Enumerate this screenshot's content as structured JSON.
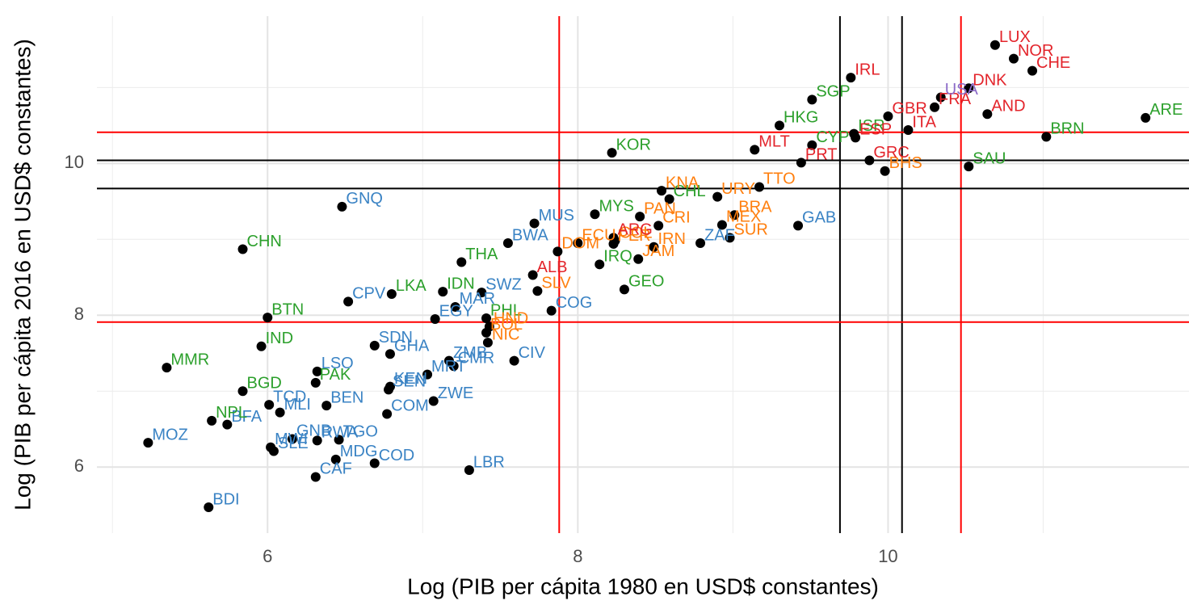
{
  "chart_data": {
    "type": "scatter",
    "x_label": "Log (PIB per cápita 1980 en USD$ constantes)",
    "y_label": "Log (PIB per cápita 2016 en USD$ constantes)",
    "xlim": [
      4.9,
      11.94
    ],
    "ylim": [
      5.13,
      11.94
    ],
    "xticks": [
      6,
      8,
      10
    ],
    "yticks": [
      6,
      8,
      10
    ],
    "x_minor_grid": [
      5,
      7,
      9,
      11
    ],
    "y_minor_grid": [
      7,
      9,
      11
    ],
    "grid": true,
    "point_color": "#000000",
    "vlines": [
      {
        "value": 7.88,
        "color": "#ff0000"
      },
      {
        "value": 9.69,
        "color": "#000000"
      },
      {
        "value": 10.09,
        "color": "#000000"
      },
      {
        "value": 10.47,
        "color": "#ff0000"
      }
    ],
    "hlines": [
      {
        "value": 10.41,
        "color": "#ff0000"
      },
      {
        "value": 10.04,
        "color": "#000000"
      },
      {
        "value": 9.67,
        "color": "#000000"
      },
      {
        "value": 7.91,
        "color": "#ff0000"
      }
    ],
    "series": [
      {
        "color": "#3a83c4",
        "labels": [
          "GNQ",
          "MUS",
          "BWA",
          "CPV",
          "SWZ",
          "MAR",
          "EGY",
          "COG",
          "ZAF",
          "GAB",
          "SDN",
          "GHA",
          "ZMB",
          "CMR",
          "CIV",
          "LSO",
          "MRT",
          "KEN",
          "SEN",
          "BEN",
          "ZWE",
          "COM",
          "TCD",
          "MLI",
          "BFA",
          "GNB",
          "SLE",
          "MWI",
          "TGO",
          "RWA",
          "MDG",
          "COD",
          "CAF",
          "LBR",
          "MOZ",
          "BDI"
        ],
        "x": [
          6.48,
          7.72,
          7.55,
          6.52,
          7.38,
          7.21,
          7.08,
          7.83,
          8.79,
          9.42,
          6.69,
          6.79,
          7.17,
          7.2,
          7.59,
          6.32,
          7.03,
          6.79,
          6.78,
          6.38,
          7.07,
          6.77,
          6.01,
          6.08,
          5.74,
          6.16,
          6.04,
          6.02,
          6.46,
          6.32,
          6.44,
          6.69,
          6.31,
          7.3,
          5.23,
          5.62
        ],
        "values": [
          9.43,
          9.21,
          8.95,
          8.18,
          8.3,
          8.11,
          7.95,
          8.06,
          8.95,
          9.18,
          7.6,
          7.49,
          7.4,
          7.33,
          7.4,
          7.26,
          7.22,
          7.06,
          7.02,
          6.81,
          6.87,
          6.7,
          6.82,
          6.72,
          6.56,
          6.37,
          6.21,
          6.26,
          6.36,
          6.35,
          6.1,
          6.05,
          5.87,
          5.96,
          6.32,
          5.47
        ]
      },
      {
        "color": "#2ca02c",
        "labels": [
          "CHN",
          "BTN",
          "IND",
          "MMR",
          "BGD",
          "PAK",
          "NPL",
          "LKA",
          "IDN",
          "THA",
          "PHL",
          "MYS",
          "KOR",
          "GEO",
          "IRQ",
          "CHL",
          "HKG",
          "SGP",
          "CYP",
          "ISR",
          "BRN",
          "ARE",
          "SAU"
        ],
        "x": [
          5.84,
          6.0,
          5.96,
          5.35,
          5.84,
          6.31,
          5.64,
          6.8,
          7.13,
          7.25,
          7.41,
          8.11,
          8.22,
          8.3,
          8.14,
          8.59,
          9.3,
          9.51,
          9.51,
          9.78,
          11.02,
          11.66,
          10.52
        ],
        "values": [
          8.87,
          7.97,
          7.59,
          7.31,
          7.0,
          7.11,
          6.61,
          8.28,
          8.31,
          8.7,
          7.96,
          9.33,
          10.14,
          8.34,
          8.67,
          9.53,
          10.5,
          10.84,
          10.24,
          10.39,
          10.35,
          10.6,
          9.96
        ]
      },
      {
        "color": "#ff7f0e",
        "labels": [
          "KNA",
          "TTO",
          "PAN",
          "CRI",
          "BRA",
          "MEX",
          "SUR",
          "URY",
          "BHS",
          "DOM",
          "ECU",
          "PER",
          "COL",
          "IRN",
          "JAM",
          "HND",
          "NIC",
          "BOL",
          "SLV"
        ],
        "x": [
          8.54,
          9.17,
          8.4,
          8.52,
          9.01,
          8.93,
          8.98,
          8.9,
          9.98,
          7.87,
          8.0,
          8.23,
          8.24,
          8.49,
          8.39,
          7.43,
          7.42,
          7.41,
          7.74
        ],
        "values": [
          9.64,
          9.69,
          9.3,
          9.18,
          9.32,
          9.19,
          9.02,
          9.56,
          9.9,
          8.84,
          8.95,
          8.94,
          8.98,
          8.9,
          8.74,
          7.85,
          7.64,
          7.77,
          8.32
        ]
      },
      {
        "color": "#e3242b",
        "labels": [
          "LUX",
          "NOR",
          "CHE",
          "IRL",
          "DNK",
          "AND",
          "MLT",
          "PRT",
          "GRC",
          "ITA",
          "ESP",
          "GBR",
          "FRA",
          "ARG",
          "ALB"
        ],
        "x": [
          10.69,
          10.81,
          10.93,
          9.76,
          10.52,
          10.64,
          9.14,
          9.44,
          9.88,
          10.13,
          9.79,
          10.0,
          10.3,
          8.23,
          7.71
        ],
        "values": [
          11.56,
          11.38,
          11.22,
          11.13,
          10.99,
          10.65,
          10.18,
          10.01,
          10.04,
          10.44,
          10.34,
          10.62,
          10.74,
          9.02,
          8.53
        ]
      },
      {
        "color": "#8c6bc8",
        "labels": [
          "USA"
        ],
        "x": [
          10.34
        ],
        "values": [
          10.87
        ]
      }
    ]
  }
}
